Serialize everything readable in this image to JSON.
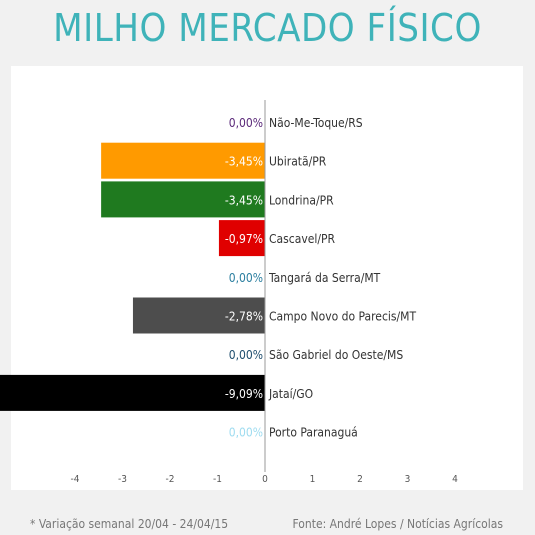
{
  "chart_data": {
    "type": "bar",
    "orientation": "horizontal",
    "title": "MILHO MERCADO FÍSICO",
    "categories": [
      "Não-Me-Toque/RS",
      "Ubiratã/PR",
      "Londrina/PR",
      "Cascavel/PR",
      "Tangará da Serra/MT",
      "Campo Novo do Parecis/MT",
      "São Gabriel do Oeste/MS",
      "Jataí/GO",
      "Porto Paranaguá"
    ],
    "values": [
      0.0,
      -3.45,
      -3.45,
      -0.97,
      0.0,
      -2.78,
      0.0,
      -9.09,
      0.0
    ],
    "value_labels": [
      "0,00%",
      "-3,45%",
      "-3,45%",
      "-0,97%",
      "0,00%",
      "-2,78%",
      "0,00%",
      "-9,09%",
      "0,00%"
    ],
    "colors": [
      "#5b2a7a",
      "#ff9a00",
      "#1f7a1f",
      "#e00000",
      "#2c7fa0",
      "#4d4d4d",
      "#1f4e6e",
      "#000000",
      "#9fdcf0"
    ],
    "xticks": [
      -4,
      -3,
      -2,
      -1,
      0,
      1,
      2,
      3,
      4
    ],
    "xlim": [
      -5,
      5
    ],
    "grid": false,
    "xlabel": "",
    "ylabel": "",
    "footnote": "* Variação semanal 20/04 - 24/04/15",
    "source": "Fonte: André Lopes / Notícias Agrícolas"
  }
}
